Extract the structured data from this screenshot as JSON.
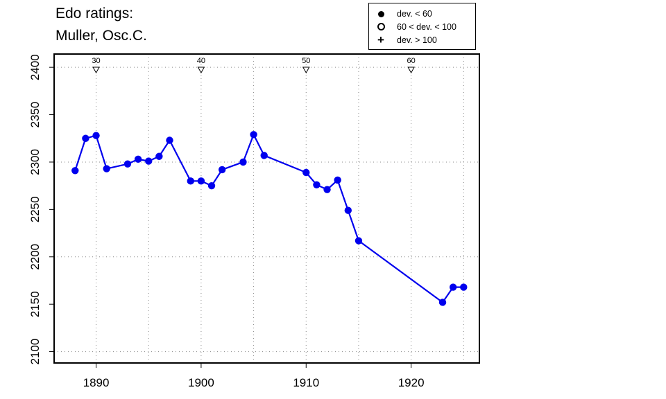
{
  "title": {
    "line1": "Edo ratings:",
    "line2": "Muller, Osc.C."
  },
  "legend": {
    "position": "top-right",
    "entries": [
      {
        "symbol": "filled-circle",
        "label": "dev. < 60"
      },
      {
        "symbol": "open-circle",
        "label": "60 < dev. < 100"
      },
      {
        "symbol": "plus",
        "label": "dev. > 100"
      }
    ]
  },
  "colors": {
    "series": "#0000ee",
    "grid": "#888888",
    "axis": "#000000"
  },
  "chart_data": {
    "type": "line",
    "xlim": [
      1886,
      1926.5
    ],
    "ylim": [
      2088,
      2414
    ],
    "x_ticks": [
      1890,
      1900,
      1910,
      1920
    ],
    "y_ticks": [
      2100,
      2150,
      2200,
      2250,
      2300,
      2350,
      2400
    ],
    "grid": true,
    "age_markers": [
      {
        "x": 1890,
        "label": "30"
      },
      {
        "x": 1900,
        "label": "40"
      },
      {
        "x": 1910,
        "label": "50"
      },
      {
        "x": 1920,
        "label": "60"
      }
    ],
    "series": [
      {
        "marker": "filled-circle",
        "points": [
          [
            1888,
            2291
          ],
          [
            1889,
            2325
          ],
          [
            1890,
            2328
          ],
          [
            1891,
            2293
          ],
          [
            1893,
            2298
          ],
          [
            1894,
            2303
          ],
          [
            1895,
            2301
          ],
          [
            1896,
            2306
          ],
          [
            1897,
            2323
          ],
          [
            1899,
            2280
          ],
          [
            1900,
            2280
          ],
          [
            1901,
            2275
          ],
          [
            1902,
            2292
          ],
          [
            1904,
            2300
          ],
          [
            1905,
            2329
          ],
          [
            1906,
            2307
          ],
          [
            1910,
            2289
          ],
          [
            1911,
            2276
          ],
          [
            1912,
            2271
          ],
          [
            1913,
            2281
          ],
          [
            1914,
            2249
          ],
          [
            1915,
            2217
          ],
          [
            1923,
            2152
          ],
          [
            1924,
            2168
          ],
          [
            1925,
            2168
          ]
        ]
      }
    ]
  }
}
